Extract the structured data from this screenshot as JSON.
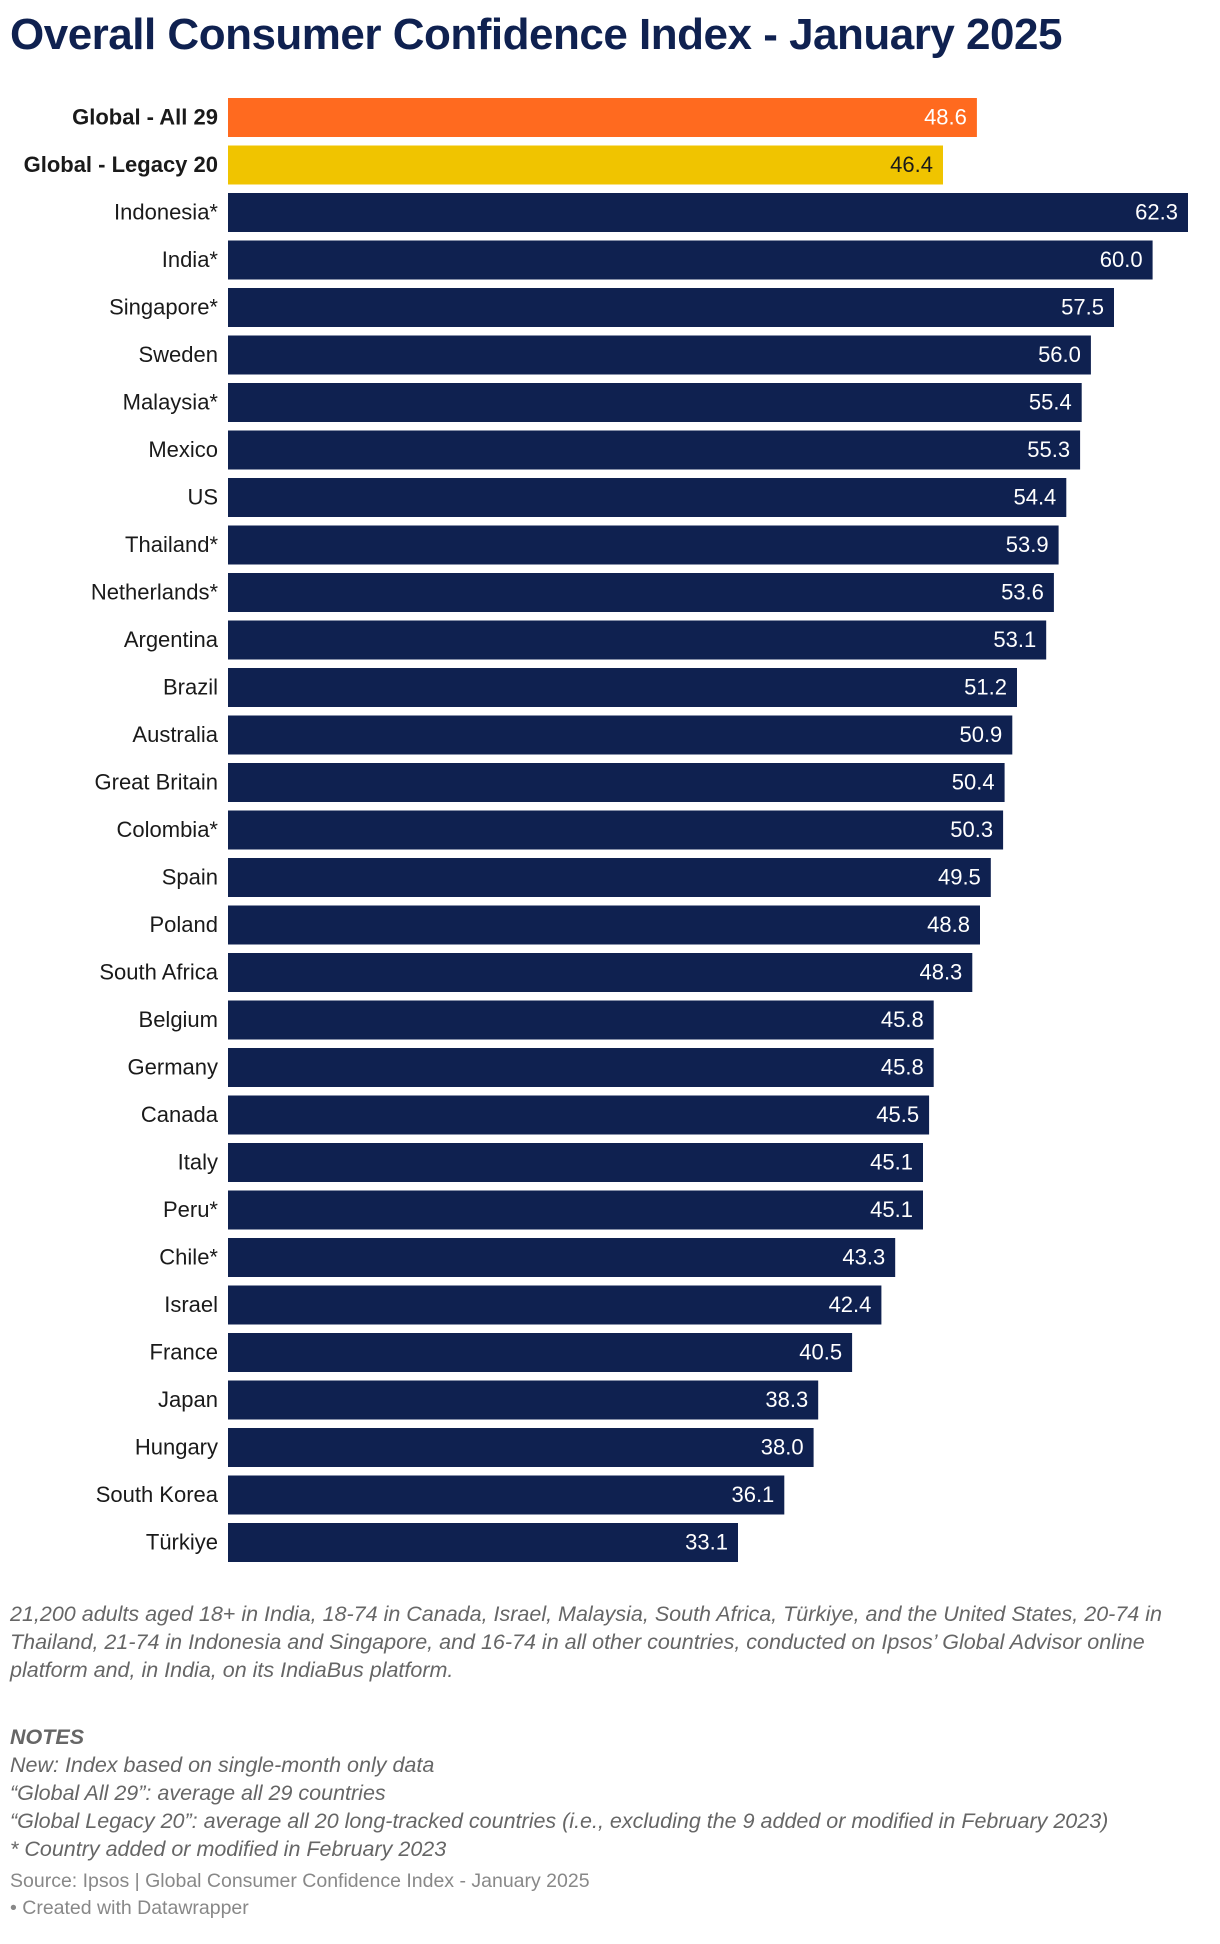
{
  "title": "Overall Consumer Confidence Index - January 2025",
  "description": "21,200 adults aged 18+ in India, 18-74 in Canada, Israel, Malaysia, South Africa, Türkiye, and the United States, 20-74 in Thailand, 21-74 in Indonesia and Singapore, and 16-74 in all other countries, conducted on Ipsos’ Global Advisor online platform and, in India, on its IndiaBus platform.",
  "notes": {
    "heading": "NOTES",
    "lines": [
      "New: Index based on single-month only data",
      "“Global All 29”: average all 29 countries",
      "“Global Legacy 20”: average all 20 long-tracked countries (i.e., excluding the 9 added or modified in February 2023)",
      "* Country added or modified in February 2023"
    ]
  },
  "source": "Source: Ipsos | Global Consumer Confidence Index - January 2025",
  "credit": "• Created with Datawrapper",
  "colors": {
    "global_all": "#ff6a1f",
    "global_legacy": "#f0c400",
    "country": "#0f2150",
    "label_on_dark": "#ffffff",
    "label_on_yellow": "#1a1a1a"
  },
  "chart_data": {
    "type": "bar",
    "orientation": "horizontal",
    "categories": [
      "Global - All 29",
      "Global - Legacy 20",
      "Indonesia*",
      "India*",
      "Singapore*",
      "Sweden",
      "Malaysia*",
      "Mexico",
      "US",
      "Thailand*",
      "Netherlands*",
      "Argentina",
      "Brazil",
      "Australia",
      "Great Britain",
      "Colombia*",
      "Spain",
      "Poland",
      "South Africa",
      "Belgium",
      "Germany",
      "Canada",
      "Italy",
      "Peru*",
      "Chile*",
      "Israel",
      "France",
      "Japan",
      "Hungary",
      "South Korea",
      "Türkiye"
    ],
    "values": [
      48.6,
      46.4,
      62.3,
      60.0,
      57.5,
      56.0,
      55.4,
      55.3,
      54.4,
      53.9,
      53.6,
      53.1,
      51.2,
      50.9,
      50.4,
      50.3,
      49.5,
      48.8,
      48.3,
      45.8,
      45.8,
      45.5,
      45.1,
      45.1,
      43.3,
      42.4,
      40.5,
      38.3,
      38.0,
      36.1,
      33.1
    ],
    "value_labels": [
      "48.6",
      "46.4",
      "62.3",
      "60.0",
      "57.5",
      "56.0",
      "55.4",
      "55.3",
      "54.4",
      "53.9",
      "53.6",
      "53.1",
      "51.2",
      "50.9",
      "50.4",
      "50.3",
      "49.5",
      "48.8",
      "48.3",
      "45.8",
      "45.8",
      "45.5",
      "45.1",
      "45.1",
      "43.3",
      "42.4",
      "40.5",
      "38.3",
      "38.0",
      "36.1",
      "33.1"
    ],
    "highlight": [
      "global_all",
      "global_legacy"
    ],
    "xlim": [
      0,
      62.3
    ],
    "grid": false,
    "legend": "none"
  }
}
